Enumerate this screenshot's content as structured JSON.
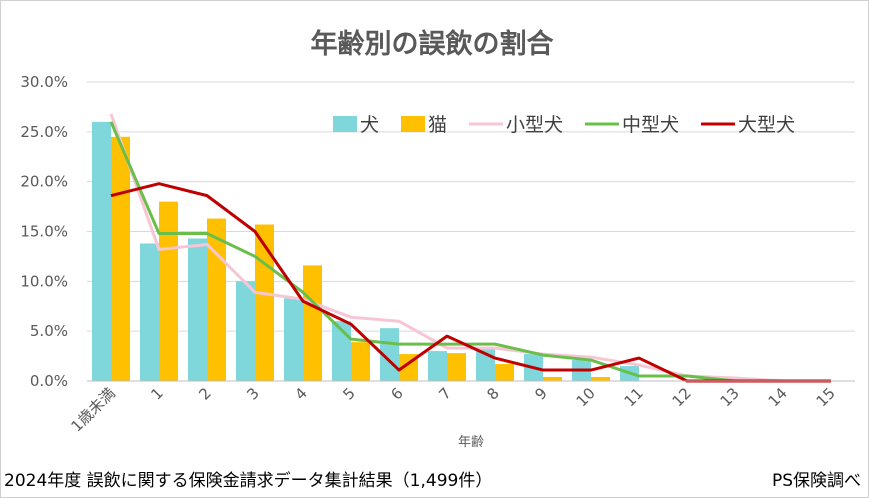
{
  "chart_data": {
    "type": "bar+line",
    "title": "年齢別の誤飲の割合",
    "xlabel": "年齢",
    "ylabel": "",
    "ylim": [
      0,
      30
    ],
    "yticks": [
      "0.0%",
      "5.0%",
      "10.0%",
      "15.0%",
      "20.0%",
      "25.0%",
      "30.0%"
    ],
    "ytick_values": [
      0,
      5,
      10,
      15,
      20,
      25,
      30
    ],
    "categories": [
      "1歳未満",
      "1",
      "2",
      "3",
      "4",
      "5",
      "6",
      "7",
      "8",
      "9",
      "10",
      "11",
      "12",
      "13",
      "14",
      "15"
    ],
    "legend_position": "top-right",
    "series": [
      {
        "name": "犬",
        "kind": "bar",
        "color": "#7fd6db",
        "values": [
          26.0,
          13.8,
          14.3,
          10.0,
          8.3,
          6.0,
          5.3,
          3.0,
          3.2,
          2.7,
          2.1,
          1.5,
          0,
          0,
          0,
          0
        ]
      },
      {
        "name": "猫",
        "kind": "bar",
        "color": "#ffc000",
        "values": [
          24.5,
          18.0,
          16.3,
          15.7,
          11.6,
          3.9,
          2.7,
          2.8,
          1.7,
          0.4,
          0.4,
          0,
          0,
          0,
          0,
          0
        ]
      },
      {
        "name": "小型犬",
        "kind": "line",
        "color": "#f7c6d5",
        "values": [
          26.8,
          13.2,
          13.7,
          8.9,
          8.2,
          6.4,
          6.0,
          3.3,
          3.3,
          2.7,
          2.4,
          1.6,
          0.5,
          0.3,
          0,
          0
        ]
      },
      {
        "name": "中型犬",
        "kind": "line",
        "color": "#6abf4b",
        "values": [
          26.0,
          14.8,
          14.8,
          12.5,
          8.9,
          4.2,
          3.7,
          3.7,
          3.7,
          2.6,
          2.1,
          0.5,
          0.5,
          0,
          0,
          0
        ]
      },
      {
        "name": "大型犬",
        "kind": "line",
        "color": "#c00000",
        "values": [
          18.6,
          19.8,
          18.6,
          15.0,
          8.0,
          5.7,
          1.1,
          4.5,
          2.3,
          1.1,
          1.1,
          2.3,
          0,
          0,
          0,
          0
        ]
      }
    ]
  },
  "footer": {
    "source": "2024年度 誤飲に関する保険金請求データ集計結果（1,499件）",
    "credit": "PS保険調べ"
  }
}
